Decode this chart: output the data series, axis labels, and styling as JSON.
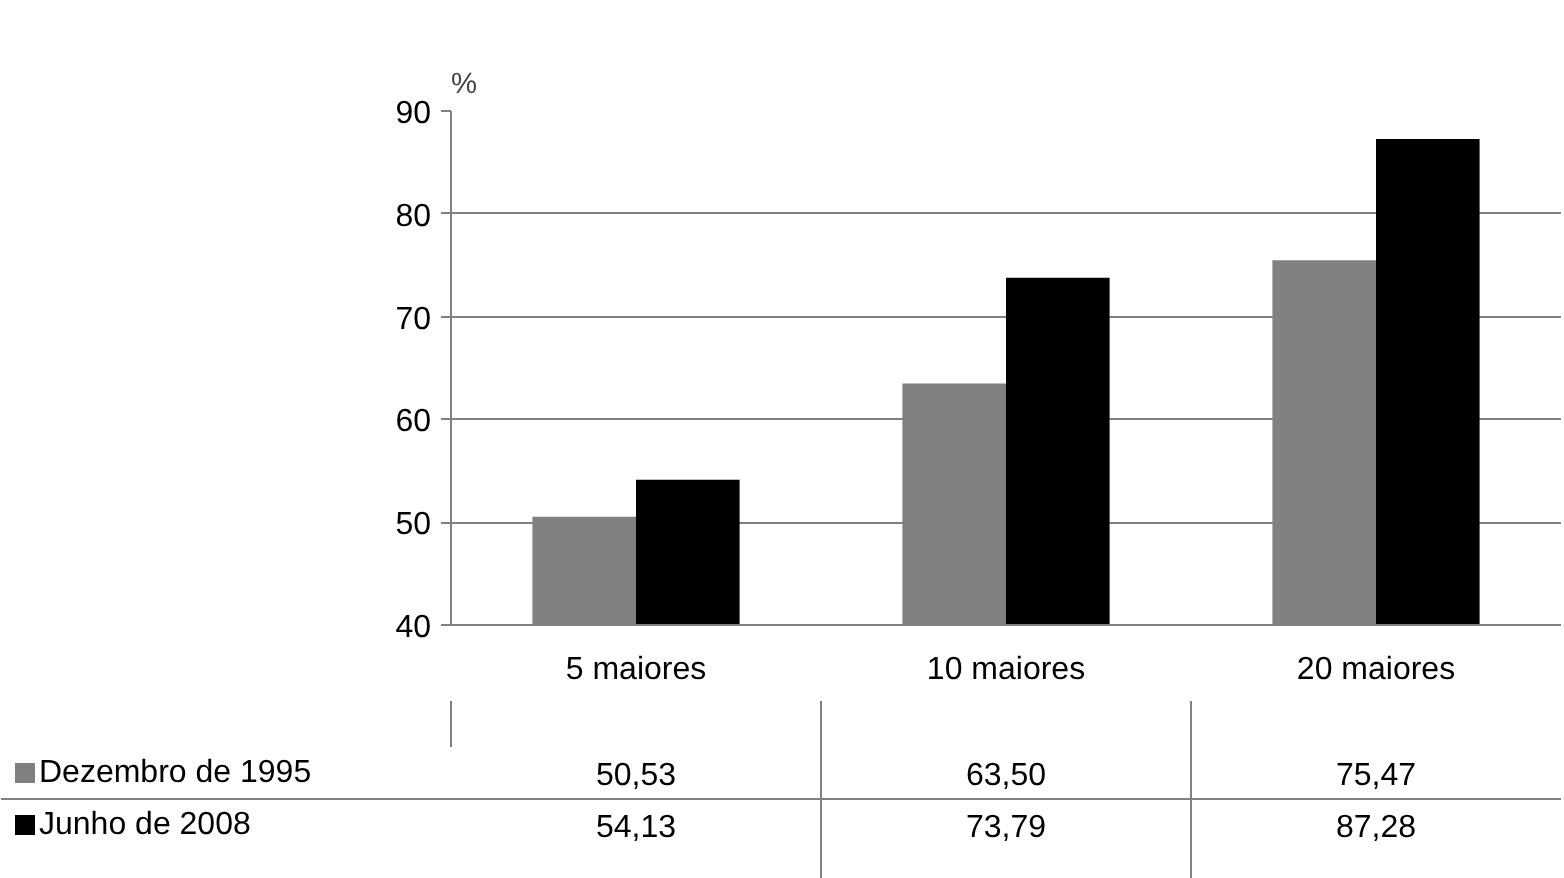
{
  "chart_data": {
    "type": "bar",
    "ylabel": "%",
    "categories": [
      "5 maiores",
      "10 maiores",
      "20 maiores"
    ],
    "series": [
      {
        "name": "Dezembro de 1995",
        "color": "#808080",
        "values": [
          50.53,
          63.5,
          75.47
        ],
        "value_labels": [
          "50,53",
          "63,50",
          "75,47"
        ]
      },
      {
        "name": "Junho de 2008",
        "color": "#000000",
        "values": [
          54.13,
          73.79,
          87.28
        ],
        "value_labels": [
          "54,13",
          "73,79",
          "87,28"
        ]
      }
    ],
    "ylim": [
      40,
      90
    ],
    "yticks": [
      40,
      50,
      60,
      70,
      80,
      90
    ],
    "grid": "y",
    "legend": "bottom left"
  }
}
